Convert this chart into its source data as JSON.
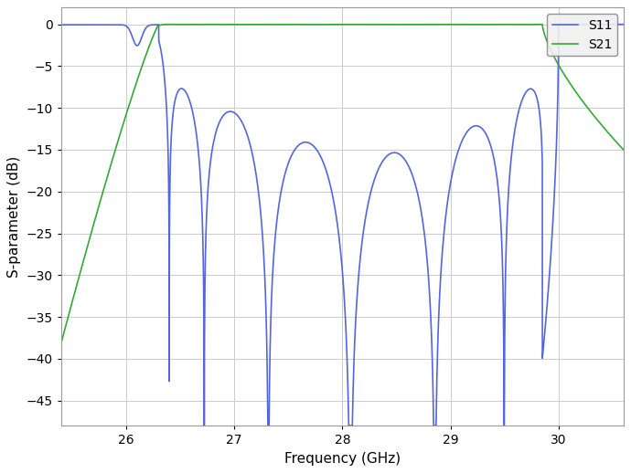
{
  "xlabel": "Frequency (GHz)",
  "ylabel": "S-parameter (dB)",
  "xlim": [
    25.4,
    30.6
  ],
  "ylim": [
    -48,
    2
  ],
  "xticks": [
    26,
    27,
    28,
    29,
    30
  ],
  "yticks": [
    0,
    -5,
    -10,
    -15,
    -20,
    -25,
    -30,
    -35,
    -40,
    -45
  ],
  "s11_color": "#5566dd",
  "s21_color": "#33aa33",
  "legend_labels": [
    "S11",
    "S21"
  ],
  "bg_color": "#ffffff",
  "grid_color": "#cccccc",
  "linewidth": 1.2,
  "legend_edge_color": "#888888",
  "legend_face_color": "#f0f0f0"
}
